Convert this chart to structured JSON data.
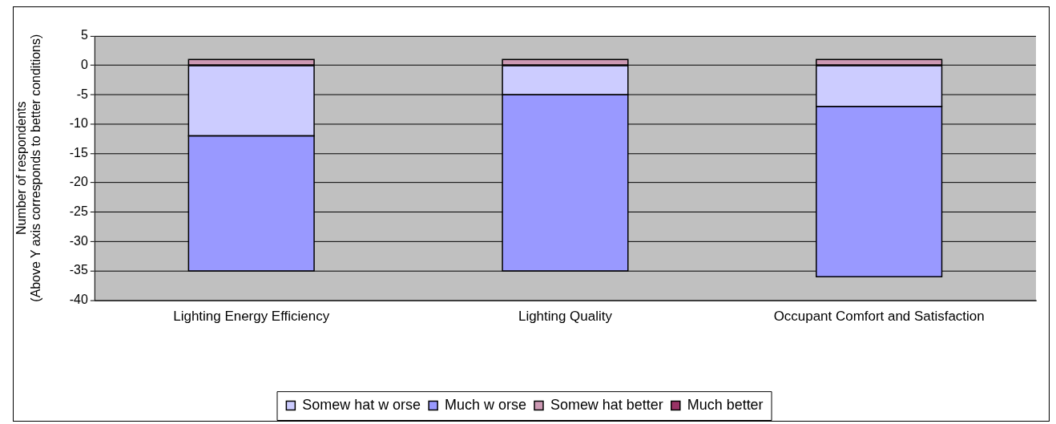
{
  "chart_data": {
    "type": "bar",
    "stacked": true,
    "categories": [
      "Lighting Energy Efficiency",
      "Lighting Quality",
      "Occupant Comfort and Satisfaction"
    ],
    "ylabel": "Number of respondents\n(Above Y axis corresponds to better conditions)",
    "ylim": [
      -40,
      5
    ],
    "yticks": [
      -40,
      -35,
      -30,
      -25,
      -20,
      -15,
      -10,
      -5,
      0,
      5
    ],
    "series": [
      {
        "name": "Somew hat w orse",
        "color": "#ccccff",
        "values": [
          -12,
          -5,
          -7
        ]
      },
      {
        "name": "Much w orse",
        "color": "#9999ff",
        "values": [
          -23,
          -30,
          -29
        ]
      },
      {
        "name": "Somew hat better",
        "color": "#cc99b3",
        "values": [
          1,
          1,
          1
        ]
      },
      {
        "name": "Much better",
        "color": "#993366",
        "values": [
          0,
          0,
          0
        ]
      }
    ],
    "grid": "y",
    "legend": "bottom"
  }
}
